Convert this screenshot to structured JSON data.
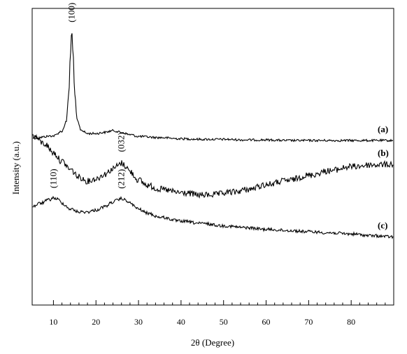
{
  "chart_data": {
    "type": "line",
    "xlabel": "2θ (Degree)",
    "ylabel": "Intensity (a.u.)",
    "xlim": [
      5,
      90
    ],
    "x_ticks": [
      10,
      20,
      30,
      40,
      50,
      60,
      70,
      80
    ],
    "y_ticks_shown": false,
    "grid": false,
    "legend": "none",
    "series": [
      {
        "name": "(a)",
        "x": [
          5,
          10,
          12,
          13,
          13.6,
          14,
          14.3,
          14.6,
          15,
          15.6,
          16.5,
          18,
          20,
          22,
          24,
          26,
          28,
          30,
          35,
          40,
          45,
          50,
          55,
          60,
          65,
          70,
          75,
          80,
          85,
          90
        ],
        "y": [
          1.0,
          1.04,
          1.12,
          1.28,
          1.75,
          2.45,
          2.85,
          2.5,
          1.75,
          1.3,
          1.14,
          1.08,
          1.08,
          1.1,
          1.13,
          1.1,
          1.06,
          1.03,
          1.01,
          0.99,
          0.98,
          0.98,
          0.97,
          0.97,
          0.96,
          0.96,
          0.96,
          0.96,
          0.96,
          0.96
        ]
      },
      {
        "name": "(b)",
        "x": [
          5,
          8,
          10,
          12,
          14,
          16,
          18,
          20,
          22,
          24,
          25,
          26,
          27,
          28,
          30,
          32,
          35,
          40,
          45,
          48,
          52,
          56,
          60,
          65,
          70,
          75,
          80,
          85,
          90
        ],
        "y": [
          1.05,
          0.9,
          0.75,
          0.6,
          0.46,
          0.33,
          0.26,
          0.3,
          0.38,
          0.47,
          0.52,
          0.57,
          0.52,
          0.42,
          0.28,
          0.19,
          0.12,
          0.06,
          0.02,
          0.03,
          0.07,
          0.12,
          0.2,
          0.27,
          0.36,
          0.44,
          0.51,
          0.54,
          0.55
        ]
      },
      {
        "name": "(c)",
        "x": [
          5,
          7,
          9,
          10,
          11,
          12,
          14,
          16,
          18,
          20,
          22,
          24,
          25,
          26,
          27,
          28,
          30,
          32,
          35,
          40,
          45,
          50,
          55,
          60,
          65,
          70,
          75,
          80,
          85,
          90
        ],
        "y": [
          -0.18,
          -0.12,
          -0.06,
          -0.03,
          -0.05,
          -0.12,
          -0.22,
          -0.27,
          -0.27,
          -0.24,
          -0.18,
          -0.1,
          -0.07,
          -0.04,
          -0.07,
          -0.12,
          -0.22,
          -0.29,
          -0.36,
          -0.43,
          -0.47,
          -0.51,
          -0.54,
          -0.57,
          -0.59,
          -0.61,
          -0.63,
          -0.65,
          -0.68,
          -0.7
        ]
      }
    ],
    "peak_labels": [
      {
        "text": "(100)",
        "series": "(a)",
        "x": 14.3
      },
      {
        "text": "(032)",
        "series": "(b)",
        "x": 26
      },
      {
        "text": "(110)",
        "series": "(c)",
        "x": 10
      },
      {
        "text": "(212)",
        "series": "(c)",
        "x": 26
      }
    ],
    "curve_labels": [
      "(a)",
      "(b)",
      "(c)"
    ]
  }
}
